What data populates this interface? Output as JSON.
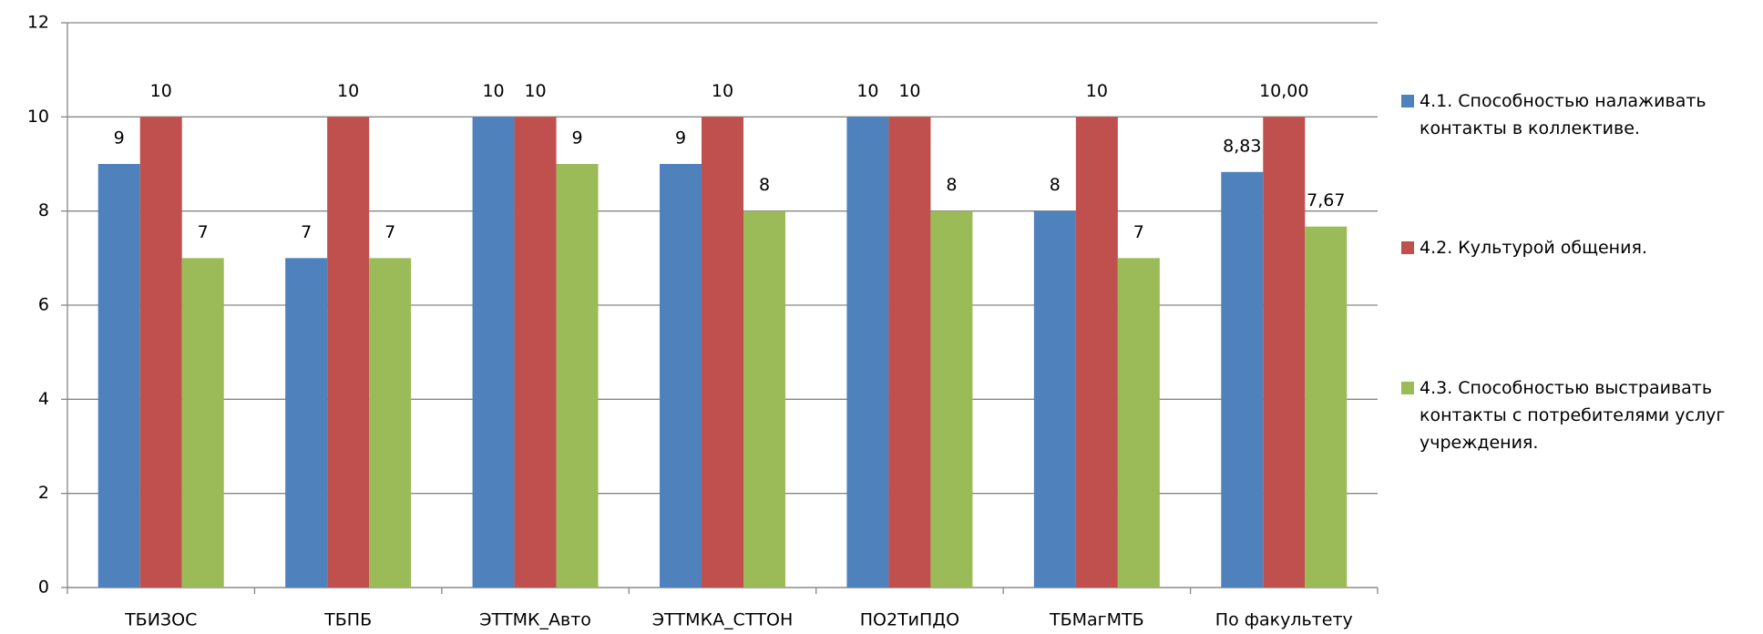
{
  "chart_data": {
    "type": "bar",
    "categories": [
      "ТБИЗОС",
      "ТБПБ",
      "ЭТТМК_Авто",
      "ЭТТМКА_СТТОН",
      "ПО2ТиПДО",
      "ТБМагМТБ",
      "По факультету"
    ],
    "series": [
      {
        "name": "4.1. Способностью налаживать контакты в коллективе.",
        "color": "#4f81bd",
        "values": [
          9,
          7,
          10,
          9,
          10,
          8,
          8.83
        ],
        "value_labels": [
          "9",
          "7",
          "10",
          "9",
          "10",
          "8",
          "8,83"
        ]
      },
      {
        "name": "4.2. Культурой  общения.",
        "color": "#c0504d",
        "values": [
          10,
          10,
          10,
          10,
          10,
          10,
          10
        ],
        "value_labels": [
          "10",
          "10",
          "10",
          "10",
          "10",
          "10",
          "10,00"
        ]
      },
      {
        "name": "4.3. Способностью выстраивать контакты  с потребителями услуг учреждения.",
        "color": "#9bbb59",
        "values": [
          7,
          7,
          9,
          8,
          8,
          7,
          7.67
        ],
        "value_labels": [
          "7",
          "7",
          "9",
          "8",
          "8",
          "7",
          "7,67"
        ]
      }
    ],
    "ylim": [
      0,
      12
    ],
    "yticks": [
      0,
      2,
      4,
      6,
      8,
      10,
      12
    ],
    "grid": true,
    "legend": "right"
  }
}
